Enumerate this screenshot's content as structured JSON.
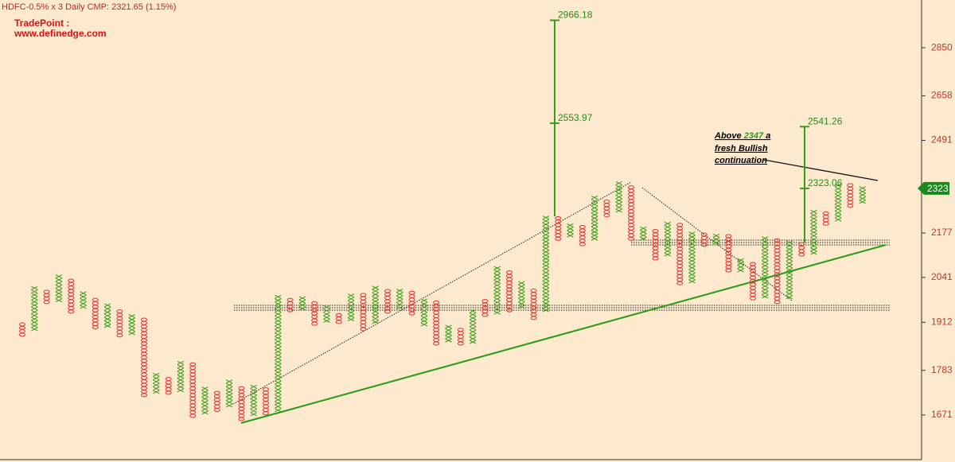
{
  "chart_data": {
    "type": "point-and-figure",
    "title": "HDFC-0.5% x 3 Daily CMP: 2321.65 (1.15%)",
    "brand": [
      "TradePoint :",
      "www.definedge.com"
    ],
    "box_percent": 0.5,
    "log_scale": true,
    "x_color": "#3a9a1a",
    "o_color": "#e83030",
    "ylim": [
      1566,
      3055
    ],
    "yticks": [
      2850,
      2658,
      2491,
      2177,
      2041,
      1912,
      1783,
      1671
    ],
    "last_price": 2323,
    "targets": [
      2966.18,
      2553.97,
      2541.26,
      2323.06
    ],
    "annotation": [
      "Above ",
      "2347",
      " a",
      "fresh Bullish",
      "continuation"
    ],
    "columns": [
      {
        "type": "O",
        "low": 1878,
        "high": 1908
      },
      {
        "type": "X",
        "low": 1893,
        "high": 2006
      },
      {
        "type": "O",
        "low": 1969,
        "high": 1994
      },
      {
        "type": "X",
        "low": 1974,
        "high": 2043
      },
      {
        "type": "O",
        "low": 1942,
        "high": 2036
      },
      {
        "type": "X",
        "low": 1955,
        "high": 1999
      },
      {
        "type": "O",
        "low": 1898,
        "high": 1974
      },
      {
        "type": "X",
        "low": 1902,
        "high": 1962
      },
      {
        "type": "O",
        "low": 1876,
        "high": 1944
      },
      {
        "type": "X",
        "low": 1882,
        "high": 1928
      },
      {
        "type": "O",
        "low": 1720,
        "high": 1918
      },
      {
        "type": "X",
        "low": 1728,
        "high": 1768
      },
      {
        "type": "O",
        "low": 1726,
        "high": 1760
      },
      {
        "type": "X",
        "low": 1732,
        "high": 1799
      },
      {
        "type": "O",
        "low": 1669,
        "high": 1795
      },
      {
        "type": "X",
        "low": 1677,
        "high": 1734
      },
      {
        "type": "O",
        "low": 1683,
        "high": 1728
      },
      {
        "type": "X",
        "low": 1694,
        "high": 1752
      },
      {
        "type": "O",
        "low": 1661,
        "high": 1740
      },
      {
        "type": "X",
        "low": 1673,
        "high": 1742
      },
      {
        "type": "O",
        "low": 1675,
        "high": 1734
      },
      {
        "type": "X",
        "low": 1683,
        "high": 1987
      },
      {
        "type": "O",
        "low": 1946,
        "high": 1976
      },
      {
        "type": "X",
        "low": 1951,
        "high": 1976
      },
      {
        "type": "O",
        "low": 1908,
        "high": 1967
      },
      {
        "type": "X",
        "low": 1916,
        "high": 1955
      },
      {
        "type": "O",
        "low": 1913,
        "high": 1937
      },
      {
        "type": "X",
        "low": 1920,
        "high": 1985
      },
      {
        "type": "O",
        "low": 1893,
        "high": 1985
      },
      {
        "type": "X",
        "low": 1913,
        "high": 2008
      },
      {
        "type": "O",
        "low": 1942,
        "high": 2001
      },
      {
        "type": "X",
        "low": 1953,
        "high": 2001
      },
      {
        "type": "O",
        "low": 1937,
        "high": 1992
      },
      {
        "type": "X",
        "low": 1906,
        "high": 1978
      },
      {
        "type": "O",
        "low": 1854,
        "high": 1971
      },
      {
        "type": "X",
        "low": 1862,
        "high": 1898
      },
      {
        "type": "O",
        "low": 1854,
        "high": 1895
      },
      {
        "type": "X",
        "low": 1858,
        "high": 1946
      },
      {
        "type": "O",
        "low": 1933,
        "high": 1976
      },
      {
        "type": "X",
        "low": 1939,
        "high": 2067
      },
      {
        "type": "O",
        "low": 1946,
        "high": 2053
      },
      {
        "type": "X",
        "low": 1955,
        "high": 2020
      },
      {
        "type": "O",
        "low": 1924,
        "high": 2006
      },
      {
        "type": "X",
        "low": 1946,
        "high": 2231
      },
      {
        "type": "O",
        "low": 2159,
        "high": 2220
      },
      {
        "type": "X",
        "low": 2169,
        "high": 2205
      },
      {
        "type": "O",
        "low": 2142,
        "high": 2197
      },
      {
        "type": "X",
        "low": 2159,
        "high": 2288
      },
      {
        "type": "O",
        "low": 2234,
        "high": 2278
      },
      {
        "type": "X",
        "low": 2249,
        "high": 2336
      },
      {
        "type": "O",
        "low": 2159,
        "high": 2328
      },
      {
        "type": "X",
        "low": 2159,
        "high": 2195
      },
      {
        "type": "O",
        "low": 2098,
        "high": 2185
      },
      {
        "type": "X",
        "low": 2110,
        "high": 2210
      },
      {
        "type": "O",
        "low": 2024,
        "high": 2202
      },
      {
        "type": "X",
        "low": 2029,
        "high": 2180
      },
      {
        "type": "O",
        "low": 2140,
        "high": 2175
      },
      {
        "type": "X",
        "low": 2147,
        "high": 2172
      },
      {
        "type": "O",
        "low": 2062,
        "high": 2164
      },
      {
        "type": "X",
        "low": 2062,
        "high": 2093
      },
      {
        "type": "O",
        "low": 1980,
        "high": 2079
      },
      {
        "type": "X",
        "low": 1985,
        "high": 2164
      },
      {
        "type": "O",
        "low": 1969,
        "high": 2152
      },
      {
        "type": "X",
        "low": 1983,
        "high": 2147
      },
      {
        "type": "O",
        "low": 2110,
        "high": 2142
      },
      {
        "type": "X",
        "low": 2115,
        "high": 2249
      },
      {
        "type": "O",
        "low": 2207,
        "high": 2241
      },
      {
        "type": "X",
        "low": 2220,
        "high": 2339
      },
      {
        "type": "O",
        "low": 2265,
        "high": 2333
      },
      {
        "type": "X",
        "low": 2278,
        "high": 2320
      }
    ]
  }
}
